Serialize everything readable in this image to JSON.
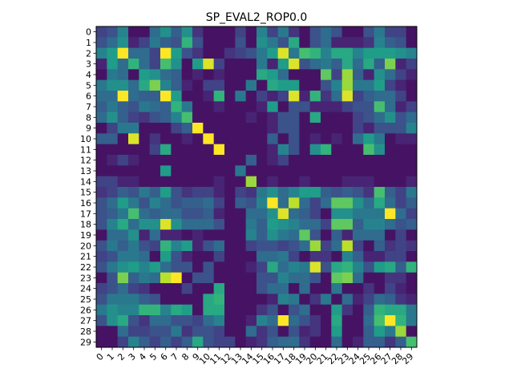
{
  "chart_data": {
    "type": "heatmap",
    "title": "SP_EVAL2_ROP0.0",
    "xlabel": "",
    "ylabel": "",
    "colormap": "viridis",
    "value_range": [
      0,
      1
    ],
    "grid": false,
    "x_ticks": [
      "0",
      "1",
      "2",
      "3",
      "4",
      "5",
      "6",
      "7",
      "8",
      "9",
      "10",
      "11",
      "12",
      "13",
      "14",
      "15",
      "16",
      "17",
      "18",
      "19",
      "20",
      "21",
      "22",
      "23",
      "24",
      "25",
      "26",
      "27",
      "28",
      "29"
    ],
    "y_ticks": [
      "0",
      "1",
      "2",
      "3",
      "4",
      "5",
      "6",
      "7",
      "8",
      "9",
      "10",
      "11",
      "12",
      "13",
      "14",
      "15",
      "16",
      "17",
      "18",
      "19",
      "20",
      "21",
      "22",
      "23",
      "24",
      "25",
      "26",
      "27",
      "28",
      "29"
    ],
    "matrix": [
      [
        0.2,
        0.25,
        0.45,
        0.05,
        0.05,
        0.35,
        0.5,
        0.3,
        0.5,
        0.15,
        0.05,
        0.05,
        0.05,
        0.2,
        0.05,
        0.45,
        0.2,
        0.4,
        0.15,
        0.05,
        0.25,
        0.35,
        0.25,
        0.05,
        0.05,
        0.25,
        0.4,
        0.2,
        0.2,
        0.05
      ],
      [
        0.25,
        0.35,
        0.5,
        0.1,
        0.2,
        0.4,
        0.3,
        0.25,
        0.65,
        0.25,
        0.05,
        0.05,
        0.05,
        0.25,
        0.05,
        0.5,
        0.4,
        0.25,
        0.6,
        0.05,
        0.25,
        0.35,
        0.1,
        0.1,
        0.1,
        0.15,
        0.45,
        0.3,
        0.25,
        0.05
      ],
      [
        0.45,
        0.55,
        1.0,
        0.35,
        0.35,
        0.2,
        1.0,
        0.55,
        0.25,
        0.15,
        0.05,
        0.05,
        0.15,
        0.2,
        0.25,
        0.4,
        0.55,
        0.95,
        0.4,
        0.7,
        0.65,
        0.45,
        0.6,
        0.6,
        0.45,
        0.55,
        0.55,
        0.55,
        0.5,
        0.45
      ],
      [
        0.1,
        0.55,
        0.35,
        0.65,
        0.35,
        0.2,
        0.7,
        0.5,
        0.05,
        0.55,
        0.95,
        0.2,
        0.05,
        0.05,
        0.05,
        0.4,
        0.1,
        0.55,
        0.95,
        0.25,
        0.35,
        0.4,
        0.3,
        0.6,
        0.35,
        0.6,
        0.3,
        0.8,
        0.1,
        0.2
      ],
      [
        0.05,
        0.4,
        0.35,
        0.05,
        0.55,
        0.5,
        0.35,
        0.3,
        0.05,
        0.1,
        0.05,
        0.1,
        0.05,
        0.05,
        0.05,
        0.6,
        0.55,
        0.35,
        0.05,
        0.05,
        0.05,
        0.75,
        0.2,
        0.85,
        0.3,
        0.1,
        0.5,
        0.35,
        0.2,
        0.1
      ],
      [
        0.4,
        0.5,
        0.5,
        0.35,
        0.6,
        0.8,
        0.45,
        0.3,
        0.1,
        0.05,
        0.2,
        0.2,
        0.05,
        0.05,
        0.4,
        0.05,
        0.6,
        0.55,
        0.55,
        0.05,
        0.05,
        0.25,
        0.45,
        0.85,
        0.4,
        0.4,
        0.55,
        0.2,
        0.1,
        0.05
      ],
      [
        0.35,
        0.35,
        1.0,
        0.35,
        0.3,
        0.3,
        1.0,
        0.55,
        0.05,
        0.05,
        0.1,
        0.65,
        0.05,
        0.4,
        0.05,
        0.2,
        0.1,
        0.2,
        0.95,
        0.1,
        0.65,
        0.15,
        0.35,
        0.95,
        0.2,
        0.3,
        0.35,
        0.35,
        0.2,
        0.05
      ],
      [
        0.3,
        0.4,
        0.3,
        0.25,
        0.4,
        0.35,
        0.3,
        0.65,
        0.4,
        0.05,
        0.05,
        0.1,
        0.05,
        0.05,
        0.05,
        0.1,
        0.55,
        0.05,
        0.25,
        0.25,
        0.1,
        0.1,
        0.1,
        0.2,
        0.25,
        0.25,
        0.7,
        0.35,
        0.1,
        0.2
      ],
      [
        0.35,
        0.5,
        0.3,
        0.2,
        0.15,
        0.25,
        0.3,
        0.45,
        0.7,
        0.05,
        0.05,
        0.05,
        0.05,
        0.05,
        0.1,
        0.05,
        0.1,
        0.25,
        0.25,
        0.05,
        0.6,
        0.05,
        0.05,
        0.05,
        0.2,
        0.25,
        0.35,
        0.5,
        0.25,
        0.35
      ],
      [
        0.05,
        0.2,
        0.4,
        0.4,
        0.05,
        0.05,
        0.05,
        0.2,
        0.3,
        1.0,
        0.05,
        0.05,
        0.05,
        0.05,
        0.05,
        0.05,
        0.1,
        0.25,
        0.25,
        0.05,
        0.05,
        0.05,
        0.05,
        0.05,
        0.2,
        0.1,
        0.25,
        0.25,
        0.25,
        0.45
      ],
      [
        0.3,
        0.3,
        0.05,
        0.95,
        0.05,
        0.15,
        0.05,
        0.05,
        0.1,
        0.05,
        1.0,
        0.05,
        0.05,
        0.05,
        0.05,
        0.05,
        0.3,
        0.05,
        0.25,
        0.05,
        0.1,
        0.05,
        0.1,
        0.05,
        0.35,
        0.55,
        0.4,
        0.05,
        0.1,
        0.1
      ],
      [
        0.05,
        0.05,
        0.05,
        0.05,
        0.05,
        0.2,
        0.6,
        0.05,
        0.05,
        0.05,
        0.05,
        1.0,
        0.05,
        0.05,
        0.05,
        0.05,
        0.1,
        0.45,
        0.25,
        0.05,
        0.5,
        0.65,
        0.05,
        0.05,
        0.05,
        0.7,
        0.5,
        0.05,
        0.05,
        0.05
      ],
      [
        0.05,
        0.1,
        0.2,
        0.1,
        0.05,
        0.05,
        0.05,
        0.05,
        0.05,
        0.05,
        0.05,
        0.05,
        0.05,
        0.05,
        0.3,
        0.05,
        0.1,
        0.2,
        0.05,
        0.05,
        0.05,
        0.05,
        0.05,
        0.05,
        0.05,
        0.05,
        0.05,
        0.05,
        0.05,
        0.05
      ],
      [
        0.05,
        0.05,
        0.05,
        0.05,
        0.05,
        0.05,
        0.55,
        0.05,
        0.05,
        0.05,
        0.05,
        0.05,
        0.05,
        0.4,
        0.05,
        0.05,
        0.05,
        0.05,
        0.05,
        0.05,
        0.05,
        0.05,
        0.05,
        0.05,
        0.05,
        0.05,
        0.05,
        0.05,
        0.05,
        0.05
      ],
      [
        0.2,
        0.2,
        0.1,
        0.1,
        0.05,
        0.05,
        0.05,
        0.05,
        0.05,
        0.05,
        0.05,
        0.1,
        0.05,
        0.05,
        0.85,
        0.05,
        0.1,
        0.05,
        0.05,
        0.1,
        0.05,
        0.05,
        0.05,
        0.1,
        0.1,
        0.1,
        0.05,
        0.05,
        0.05,
        0.1
      ],
      [
        0.15,
        0.2,
        0.3,
        0.25,
        0.4,
        0.3,
        0.55,
        0.25,
        0.15,
        0.2,
        0.2,
        0.1,
        0.05,
        0.2,
        0.15,
        0.4,
        0.5,
        0.35,
        0.45,
        0.55,
        0.55,
        0.3,
        0.25,
        0.3,
        0.25,
        0.15,
        0.7,
        0.3,
        0.2,
        0.4
      ],
      [
        0.25,
        0.35,
        0.55,
        0.4,
        0.25,
        0.45,
        0.35,
        0.25,
        0.3,
        0.3,
        0.35,
        0.2,
        0.05,
        0.3,
        0.25,
        0.45,
        1.0,
        0.35,
        0.9,
        0.35,
        0.2,
        0.35,
        0.75,
        0.75,
        0.5,
        0.35,
        0.6,
        0.35,
        0.2,
        0.3
      ],
      [
        0.25,
        0.3,
        0.4,
        0.7,
        0.35,
        0.3,
        0.35,
        0.35,
        0.25,
        0.25,
        0.3,
        0.1,
        0.05,
        0.05,
        0.35,
        0.35,
        0.5,
        0.95,
        0.35,
        0.3,
        0.2,
        0.05,
        0.5,
        0.5,
        0.4,
        0.4,
        0.4,
        1.0,
        0.35,
        0.2
      ],
      [
        0.25,
        0.45,
        0.6,
        0.35,
        0.5,
        0.5,
        0.95,
        0.5,
        0.35,
        0.35,
        0.35,
        0.25,
        0.05,
        0.05,
        0.4,
        0.3,
        0.55,
        0.5,
        0.45,
        0.35,
        0.35,
        0.2,
        0.75,
        0.75,
        0.3,
        0.45,
        0.45,
        0.35,
        0.25,
        0.3
      ],
      [
        0.05,
        0.35,
        0.35,
        0.5,
        0.1,
        0.35,
        0.1,
        0.1,
        0.05,
        0.1,
        0.05,
        0.05,
        0.05,
        0.05,
        0.45,
        0.3,
        0.5,
        0.4,
        0.35,
        0.75,
        0.25,
        0.05,
        0.3,
        0.1,
        0.35,
        0.35,
        0.35,
        0.05,
        0.2,
        0.05
      ],
      [
        0.25,
        0.4,
        0.3,
        0.4,
        0.25,
        0.2,
        0.65,
        0.45,
        0.55,
        0.1,
        0.25,
        0.35,
        0.05,
        0.05,
        0.2,
        0.25,
        0.25,
        0.2,
        0.25,
        0.35,
        0.85,
        0.2,
        0.35,
        0.9,
        0.2,
        0.05,
        0.3,
        0.15,
        0.2,
        0.15
      ],
      [
        0.2,
        0.25,
        0.4,
        0.4,
        0.35,
        0.05,
        0.55,
        0.25,
        0.1,
        0.05,
        0.05,
        0.2,
        0.05,
        0.05,
        0.05,
        0.35,
        0.35,
        0.4,
        0.2,
        0.05,
        0.15,
        0.15,
        0.05,
        0.45,
        0.3,
        0.1,
        0.1,
        0.2,
        0.2,
        0.05
      ],
      [
        0.25,
        0.4,
        0.5,
        0.55,
        0.45,
        0.55,
        0.35,
        0.25,
        0.25,
        0.05,
        0.25,
        0.05,
        0.05,
        0.05,
        0.1,
        0.2,
        0.6,
        0.35,
        0.45,
        0.4,
        0.95,
        0.25,
        0.6,
        0.65,
        0.45,
        0.25,
        0.55,
        0.6,
        0.3,
        0.65
      ],
      [
        0.05,
        0.25,
        0.8,
        0.3,
        0.4,
        0.35,
        0.9,
        1.0,
        0.05,
        0.25,
        0.25,
        0.05,
        0.05,
        0.05,
        0.05,
        0.25,
        0.25,
        0.45,
        0.35,
        0.35,
        0.25,
        0.05,
        0.75,
        0.8,
        0.35,
        0.05,
        0.05,
        0.15,
        0.15,
        0.05
      ],
      [
        0.2,
        0.25,
        0.35,
        0.2,
        0.15,
        0.05,
        0.05,
        0.05,
        0.2,
        0.05,
        0.05,
        0.6,
        0.05,
        0.05,
        0.05,
        0.25,
        0.35,
        0.35,
        0.05,
        0.35,
        0.05,
        0.05,
        0.4,
        0.05,
        0.05,
        0.15,
        0.05,
        0.2,
        0.1,
        0.05
      ],
      [
        0.25,
        0.4,
        0.4,
        0.4,
        0.3,
        0.25,
        0.05,
        0.05,
        0.05,
        0.05,
        0.6,
        0.65,
        0.05,
        0.05,
        0.05,
        0.05,
        0.1,
        0.45,
        0.4,
        0.05,
        0.15,
        0.4,
        0.05,
        0.35,
        0.1,
        0.2,
        0.35,
        0.3,
        0.15,
        0.1
      ],
      [
        0.4,
        0.5,
        0.45,
        0.45,
        0.65,
        0.65,
        0.45,
        0.6,
        0.55,
        0.05,
        0.6,
        0.6,
        0.05,
        0.05,
        0.05,
        0.15,
        0.25,
        0.05,
        0.25,
        0.35,
        0.05,
        0.05,
        0.55,
        0.15,
        0.05,
        0.3,
        0.65,
        0.6,
        0.6,
        0.4
      ],
      [
        0.25,
        0.5,
        0.6,
        0.25,
        0.15,
        0.35,
        0.35,
        0.25,
        0.25,
        0.2,
        0.35,
        0.45,
        0.05,
        0.05,
        0.1,
        0.45,
        0.35,
        1.0,
        0.35,
        0.25,
        0.15,
        0.05,
        0.6,
        0.05,
        0.05,
        0.35,
        0.7,
        1.0,
        0.65,
        0.4
      ],
      [
        0.05,
        0.05,
        0.35,
        0.2,
        0.2,
        0.25,
        0.25,
        0.4,
        0.15,
        0.25,
        0.25,
        0.2,
        0.05,
        0.05,
        0.35,
        0.15,
        0.25,
        0.05,
        0.25,
        0.1,
        0.15,
        0.05,
        0.55,
        0.05,
        0.05,
        0.3,
        0.55,
        0.4,
        0.85,
        0.05
      ],
      [
        0.05,
        0.05,
        0.2,
        0.45,
        0.3,
        0.2,
        0.3,
        0.2,
        0.3,
        0.6,
        0.25,
        0.2,
        0.2,
        0.05,
        0.1,
        0.15,
        0.3,
        0.35,
        0.35,
        0.15,
        0.05,
        0.05,
        0.35,
        0.05,
        0.1,
        0.3,
        0.3,
        0.15,
        0.3,
        0.7
      ]
    ]
  }
}
